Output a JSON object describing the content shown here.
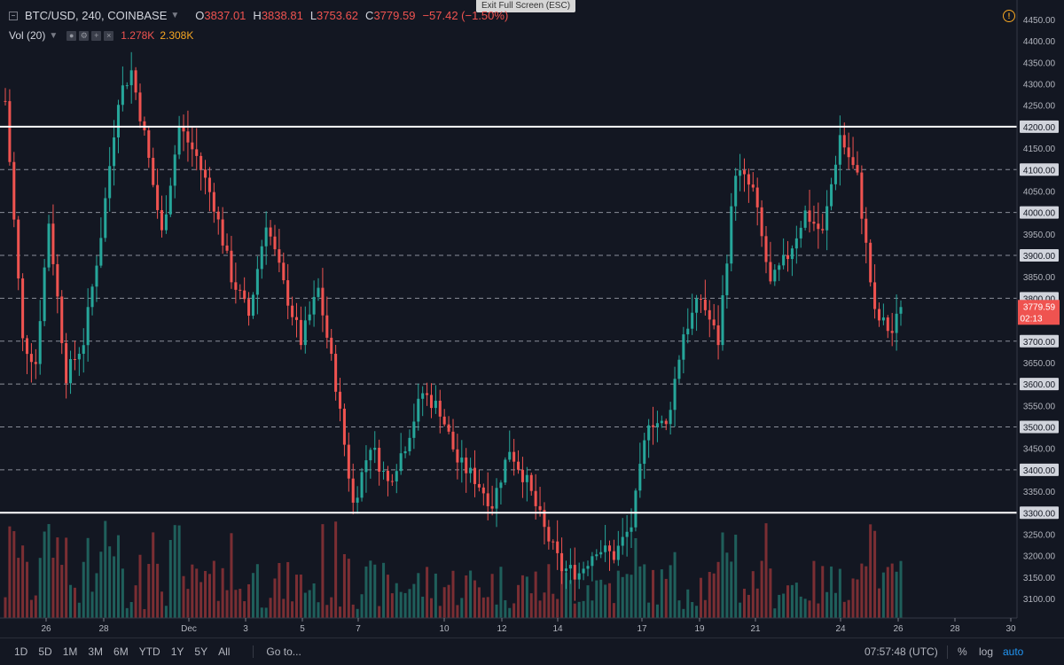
{
  "header": {
    "symbol": "BTC/USD, 240, COINBASE",
    "open_label": "O",
    "open": "3837.01",
    "high_label": "H",
    "high": "3838.81",
    "low_label": "L",
    "low": "3753.62",
    "close_label": "C",
    "close": "3779.59",
    "change": "−57.42 (−1.50%)",
    "exit_fullscreen": "Exit Full Screen (ESC)"
  },
  "volume_indicator": {
    "label": "Vol (20)",
    "icons": [
      "eye-icon",
      "settings-icon",
      "add-icon",
      "close-icon"
    ],
    "value_a": "1.278K",
    "value_b": "2.308K"
  },
  "price_axis": {
    "last_price": "3779.59",
    "countdown": "02:13",
    "highlighted_levels": [
      "4200.00",
      "4100.00",
      "4000.00",
      "3900.00",
      "3800.00",
      "3700.00",
      "3600.00",
      "3500.00",
      "3400.00",
      "3300.00"
    ]
  },
  "bottom_bar": {
    "ranges": [
      "1D",
      "5D",
      "1M",
      "3M",
      "6M",
      "YTD",
      "1Y",
      "5Y",
      "All"
    ],
    "goto": "Go to...",
    "clock": "07:57:48 (UTC)",
    "percent": "%",
    "log": "log",
    "auto": "auto"
  },
  "colors": {
    "background": "#131722",
    "up": "#26a69a",
    "down": "#ef5350",
    "volume_up": "#1f5f5b",
    "volume_down": "#7a2e33",
    "grid_dashed": "#8a8e99",
    "level_solid": "#ffffff",
    "accent": "#2196f3"
  },
  "chart_data": {
    "type": "candlestick",
    "timeframe": "240",
    "ylim": [
      3050,
      4475
    ],
    "y_ticks": [
      "4450.00",
      "4400.00",
      "4350.00",
      "4300.00",
      "4250.00",
      "4200.00",
      "4150.00",
      "4100.00",
      "4050.00",
      "4000.00",
      "3950.00",
      "3900.00",
      "3850.00",
      "3800.00",
      "3750.00",
      "3700.00",
      "3650.00",
      "3600.00",
      "3550.00",
      "3500.00",
      "3450.00",
      "3400.00",
      "3350.00",
      "3300.00",
      "3250.00",
      "3200.00",
      "3150.00",
      "3100.00"
    ],
    "x_ticks": [
      "26",
      "28",
      "Dec",
      "3",
      "5",
      "7",
      "10",
      "12",
      "14",
      "17",
      "19",
      "21",
      "24",
      "26",
      "28",
      "30"
    ],
    "solid_lines": [
      4200,
      3300
    ],
    "dashed_lines": [
      4100,
      4000,
      3900,
      3800,
      3700,
      3600,
      3500,
      3400
    ],
    "candles_summary": {
      "start_open": 4260,
      "peak_high": 4400,
      "trough_low": 3130,
      "end_close": 3779.59
    }
  }
}
